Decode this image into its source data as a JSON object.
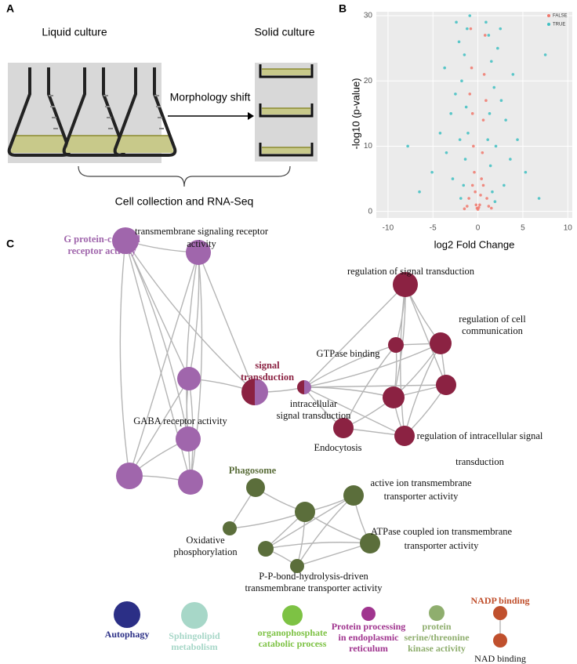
{
  "panel_a": {
    "label": "A",
    "left_caption": "Liquid culture",
    "right_caption": "Solid culture",
    "arrow_label": "Morphology shift",
    "bottom_caption": "Cell collection and RNA-Seq"
  },
  "panel_b_label": "B",
  "chart_data": {
    "type": "scatter",
    "xlabel": "log2 Fold Change",
    "ylabel": "-log10 (p-value)",
    "xlim": [
      -11.3,
      10.5
    ],
    "ylim": [
      -1,
      30.6
    ],
    "xticks": [
      -10,
      -5,
      0,
      5,
      10
    ],
    "yticks": [
      0,
      10,
      20,
      30
    ],
    "grid": true,
    "legend": "top-right",
    "series": [
      {
        "name": "FALSE",
        "color": "#f0786c",
        "x": [
          -0.8,
          -0.7,
          -0.6,
          -0.5,
          -0.4,
          -0.3,
          -0.2,
          0,
          0.2,
          0.3,
          0.4,
          0.5,
          0.6,
          0.7,
          0.8,
          -1.0,
          1.0,
          -1.2,
          1.2,
          -0.1,
          0.1,
          -0.9,
          0.9,
          -1.5,
          1.5,
          -0.6,
          0.6
        ],
        "values": [
          28,
          22,
          15,
          10,
          6,
          3,
          1,
          0.3,
          1,
          2.5,
          5,
          9,
          14,
          21,
          27,
          2,
          2,
          0.8,
          0.8,
          0.5,
          0.6,
          18,
          17,
          0.4,
          0.5,
          4,
          4
        ]
      },
      {
        "name": "TRUE",
        "color": "#3fbfc2",
        "x": [
          -1.2,
          -1.5,
          -2.1,
          -1.8,
          -2.5,
          -3.0,
          -1.3,
          -4.2,
          -3.5,
          -2.0,
          -1.4,
          -5.1,
          -2.8,
          -1.6,
          -6.5,
          -1.9,
          -3.7,
          -0.9,
          -1.1,
          -2.4,
          1.2,
          1.5,
          2.2,
          1.8,
          2.6,
          3.1,
          1.3,
          4.4,
          3.6,
          2.0,
          1.4,
          5.3,
          2.9,
          1.6,
          6.8,
          1.9,
          3.9,
          0.9,
          1.1,
          2.5,
          7.5,
          -7.8
        ],
        "values": [
          28,
          24,
          26,
          20,
          18,
          15,
          16,
          12,
          9,
          11,
          8,
          6,
          5,
          4,
          3,
          2,
          22,
          30,
          12,
          29,
          27,
          23,
          25,
          19,
          17,
          14,
          15,
          11,
          8,
          10,
          7,
          6,
          4,
          3,
          2,
          1.5,
          21,
          29,
          11,
          28,
          24,
          10
        ]
      }
    ]
  },
  "panel_c": {
    "label": "C",
    "terms": [
      {
        "lines": [
          "transmembrane signaling receptor",
          "activity"
        ]
      },
      {
        "lines": [
          "G protein-coupled",
          "receptor activity"
        ]
      },
      {
        "lines": [
          "signal",
          "transduction"
        ]
      },
      {
        "lines": [
          "GTPase binding"
        ]
      },
      {
        "lines": [
          "intracellular",
          "signal transduction"
        ]
      },
      {
        "lines": [
          "GABA receptor activity"
        ]
      },
      {
        "lines": [
          "regulation of signal transduction"
        ]
      },
      {
        "lines": [
          "regulation of cell",
          "communication"
        ]
      },
      {
        "lines": [
          "Endocytosis"
        ]
      },
      {
        "lines": [
          "regulation of intracellular signal",
          "transduction"
        ]
      },
      {
        "lines": [
          "Phagosome"
        ]
      },
      {
        "lines": [
          "active ion transmembrane",
          "transporter activity"
        ]
      },
      {
        "lines": [
          "Oxidative",
          "phosphorylation"
        ]
      },
      {
        "lines": [
          "ATPase coupled ion transmembrane",
          "transporter activity"
        ]
      },
      {
        "lines": [
          "P-P-bond-hydrolysis-driven",
          "transmembrane transporter activity"
        ]
      }
    ],
    "legend": [
      {
        "lines": [
          "Autophagy"
        ]
      },
      {
        "lines": [
          "Sphingolipid",
          "metabolism"
        ]
      },
      {
        "lines": [
          "organophosphate",
          "catabolic process"
        ]
      },
      {
        "lines": [
          "Protein processing",
          "in endoplasmic",
          "reticulum"
        ]
      },
      {
        "lines": [
          "protein",
          "serine/threonine",
          "kinase activity"
        ]
      },
      {
        "lines": [
          "NADP binding"
        ]
      },
      {
        "lines": [
          "NAD binding"
        ]
      }
    ]
  }
}
